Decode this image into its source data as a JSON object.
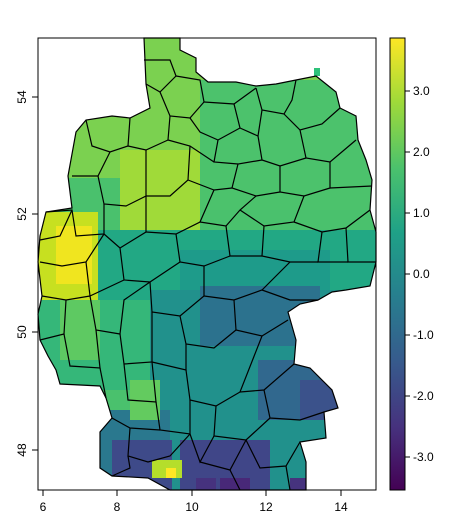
{
  "map": {
    "x_axis": {
      "ticks": [
        "6",
        "8",
        "10",
        "12",
        "14"
      ]
    },
    "y_axis": {
      "ticks": [
        "48",
        "50",
        "52",
        "54"
      ]
    },
    "legend": {
      "ticks": [
        "3.0",
        "2.0",
        "1.0",
        "0.0",
        "-1.0",
        "-2.0",
        "-3.0"
      ],
      "range": [
        -3.5,
        3.9
      ],
      "palette": "viridis"
    },
    "colors": {
      "boundary": "#000000",
      "viridis": [
        "#440154",
        "#46327e",
        "#365c8d",
        "#277f8e",
        "#1fa187",
        "#4ac16d",
        "#a0da39",
        "#fde725"
      ]
    }
  }
}
